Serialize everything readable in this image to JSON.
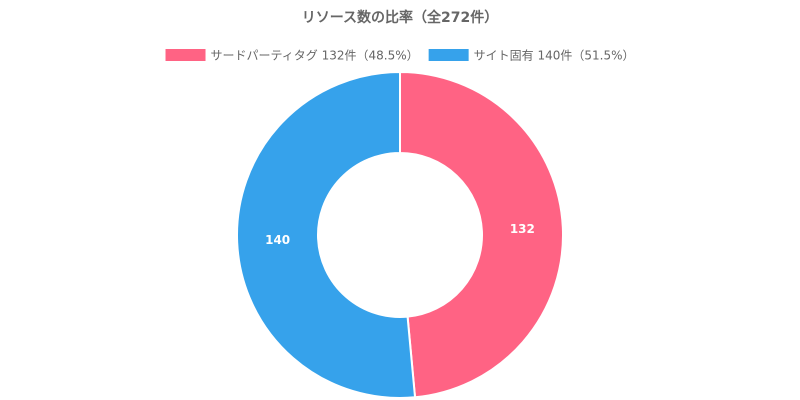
{
  "chart_data": {
    "type": "doughnut",
    "title": "リソース数の比率（全272件）",
    "categories": [
      "サードパーティタグ 132件（48.5%）",
      "サイト固有 140件（51.5%）"
    ],
    "values": [
      132,
      140
    ],
    "colors": [
      "#ff6384",
      "#36a2eb"
    ],
    "legend": "top"
  }
}
